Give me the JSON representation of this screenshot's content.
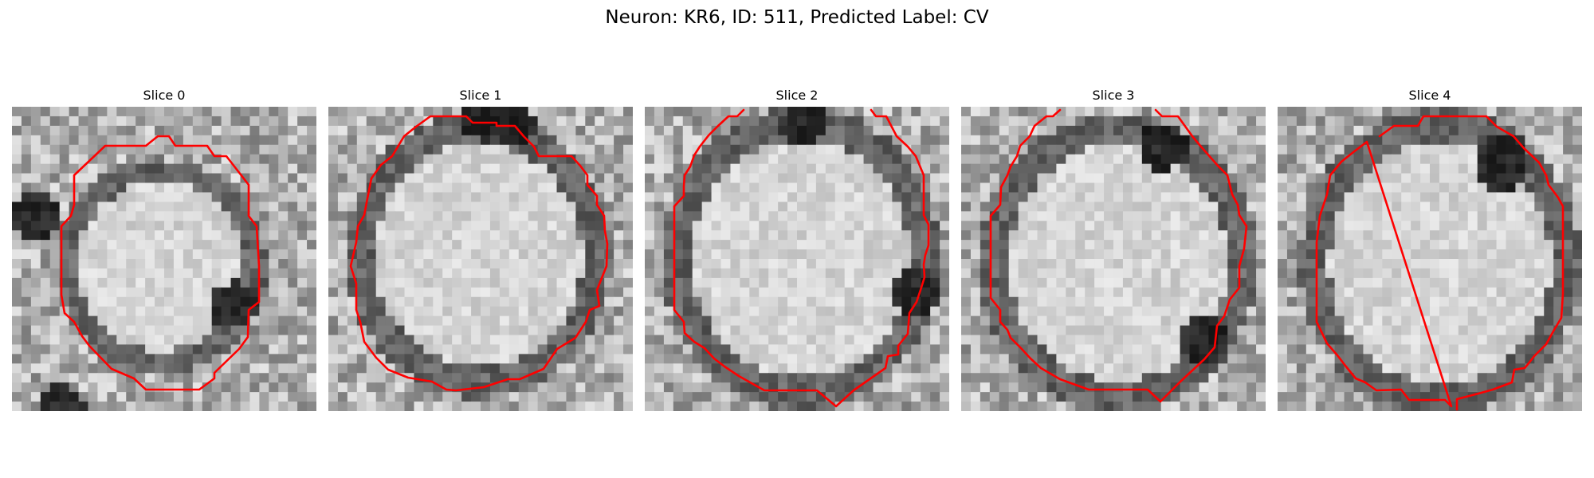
{
  "figure": {
    "title": "Neuron: KR6, ID: 511, Predicted Label: CV"
  },
  "contour_color": "#ff0000",
  "slices": [
    {
      "title": "Slice 0"
    },
    {
      "title": "Slice 1"
    },
    {
      "title": "Slice 2"
    },
    {
      "title": "Slice 3"
    },
    {
      "title": "Slice 4"
    }
  ]
}
